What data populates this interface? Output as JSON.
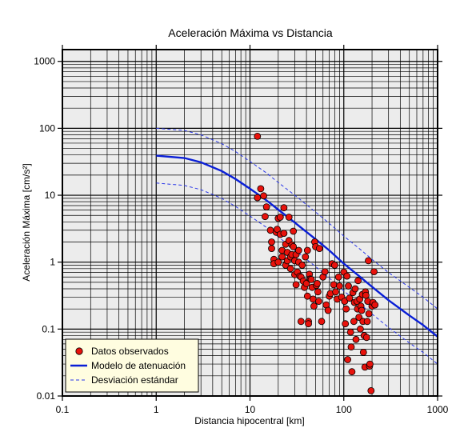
{
  "chart_data": {
    "type": "scatter",
    "title": "Aceleración Máxima vs Distancia",
    "xlabel": "Distancia hipocentral [km]",
    "ylabel": "Aceleración Máxima [cm/s²]",
    "xscale": "log",
    "yscale": "log",
    "xlim": [
      0.1,
      1000
    ],
    "ylim": [
      0.01,
      1500
    ],
    "grid": true,
    "legend_placement": "bottom-left",
    "x_tick_labels": [
      "0.1",
      "1",
      "10",
      "100",
      "1000"
    ],
    "y_tick_labels": [
      "0.01",
      "0.1",
      "1",
      "10",
      "100",
      "1000"
    ],
    "colors": {
      "observed": "#e8120c",
      "model": "#0a1fd6",
      "deviation": "#2a37e8",
      "plot_background": "#ececec",
      "legend_background": "#fffde0"
    },
    "series": [
      {
        "name": "Datos observados",
        "kind": "scatter",
        "points": [
          [
            12,
            76
          ],
          [
            12,
            9.2
          ],
          [
            13,
            12.5
          ],
          [
            14,
            9.8
          ],
          [
            14.5,
            4.8
          ],
          [
            15,
            6.7
          ],
          [
            16.5,
            3.0
          ],
          [
            17,
            2.0
          ],
          [
            17,
            1.6
          ],
          [
            18,
            1.1
          ],
          [
            18,
            0.95
          ],
          [
            19,
            2.8
          ],
          [
            19.5,
            3.1
          ],
          [
            20,
            4.5
          ],
          [
            20,
            1.0
          ],
          [
            21,
            4.7
          ],
          [
            21,
            2.6
          ],
          [
            22,
            1.5
          ],
          [
            22,
            1.2
          ],
          [
            23,
            6.5
          ],
          [
            23,
            2.7
          ],
          [
            24,
            1.85
          ],
          [
            24,
            0.9
          ],
          [
            25,
            1.4
          ],
          [
            25,
            1.05
          ],
          [
            26,
            4.7
          ],
          [
            26,
            2.1
          ],
          [
            27,
            1.2
          ],
          [
            27,
            0.8
          ],
          [
            28,
            1.8
          ],
          [
            28,
            1.3
          ],
          [
            29,
            1.7
          ],
          [
            29,
            2.9
          ],
          [
            30,
            1.05
          ],
          [
            30,
            0.65
          ],
          [
            31,
            0.46
          ],
          [
            31,
            1.3
          ],
          [
            32,
            0.71
          ],
          [
            33,
            1.5
          ],
          [
            33,
            1.0
          ],
          [
            34,
            0.62
          ],
          [
            35,
            0.6
          ],
          [
            35,
            0.13
          ],
          [
            36,
            0.9
          ],
          [
            37,
            0.52
          ],
          [
            38,
            0.42
          ],
          [
            39,
            1.2
          ],
          [
            40,
            0.48
          ],
          [
            41,
            1.5
          ],
          [
            41,
            0.31
          ],
          [
            42,
            0.13
          ],
          [
            42,
            0.12
          ],
          [
            43,
            0.66
          ],
          [
            44,
            0.56
          ],
          [
            45,
            0.55
          ],
          [
            46,
            0.42
          ],
          [
            47,
            0.28
          ],
          [
            48,
            0.22
          ],
          [
            49,
            2.0
          ],
          [
            50,
            1.7
          ],
          [
            51,
            0.45
          ],
          [
            52,
            0.48
          ],
          [
            53,
            0.36
          ],
          [
            54,
            0.26
          ],
          [
            55,
            1.6
          ],
          [
            58,
            0.13
          ],
          [
            60,
            0.6
          ],
          [
            63,
            0.72
          ],
          [
            65,
            0.23
          ],
          [
            68,
            0.19
          ],
          [
            70,
            0.31
          ],
          [
            72,
            0.34
          ],
          [
            75,
            0.95
          ],
          [
            78,
            0.46
          ],
          [
            80,
            0.9
          ],
          [
            82,
            0.36
          ],
          [
            85,
            0.28
          ],
          [
            88,
            0.6
          ],
          [
            90,
            0.44
          ],
          [
            95,
            0.3
          ],
          [
            100,
            0.71
          ],
          [
            102,
            0.26
          ],
          [
            104,
            0.12
          ],
          [
            106,
            0.2
          ],
          [
            108,
            0.62
          ],
          [
            110,
            0.035
          ],
          [
            112,
            0.44
          ],
          [
            115,
            0.29
          ],
          [
            118,
            0.09
          ],
          [
            120,
            0.054
          ],
          [
            122,
            0.023
          ],
          [
            125,
            0.35
          ],
          [
            128,
            0.13
          ],
          [
            130,
            0.25
          ],
          [
            132,
            0.4
          ],
          [
            135,
            0.07
          ],
          [
            138,
            0.26
          ],
          [
            140,
            0.2
          ],
          [
            142,
            0.53
          ],
          [
            145,
            0.15
          ],
          [
            148,
            0.28
          ],
          [
            150,
            0.1
          ],
          [
            152,
            0.22
          ],
          [
            155,
            0.19
          ],
          [
            158,
            0.33
          ],
          [
            160,
            0.13
          ],
          [
            162,
            0.045
          ],
          [
            165,
            0.08
          ],
          [
            168,
            0.027
          ],
          [
            170,
            0.36
          ],
          [
            172,
            0.32
          ],
          [
            175,
            0.075
          ],
          [
            178,
            0.13
          ],
          [
            180,
            0.26
          ],
          [
            183,
            1.05
          ],
          [
            185,
            0.17
          ],
          [
            188,
            0.028
          ],
          [
            190,
            0.03
          ],
          [
            195,
            0.012
          ],
          [
            200,
            0.22
          ],
          [
            205,
            0.25
          ],
          [
            210,
            0.72
          ],
          [
            215,
            0.23
          ]
        ]
      },
      {
        "name": "Modelo de atenuación",
        "kind": "line",
        "points": [
          [
            1,
            39
          ],
          [
            2,
            36
          ],
          [
            3,
            31
          ],
          [
            5,
            23
          ],
          [
            7,
            17.5
          ],
          [
            10,
            12.5
          ],
          [
            15,
            8.4
          ],
          [
            20,
            6.1
          ],
          [
            30,
            3.9
          ],
          [
            50,
            2.2
          ],
          [
            70,
            1.5
          ],
          [
            100,
            0.95
          ],
          [
            150,
            0.6
          ],
          [
            200,
            0.43
          ],
          [
            300,
            0.27
          ],
          [
            500,
            0.16
          ],
          [
            700,
            0.115
          ],
          [
            1000,
            0.077
          ]
        ]
      },
      {
        "name": "Desviación estándar",
        "kind": "dashed-line",
        "upper": [
          [
            1,
            100
          ],
          [
            2,
            93
          ],
          [
            3,
            80
          ],
          [
            5,
            59
          ],
          [
            7,
            45
          ],
          [
            10,
            32
          ],
          [
            15,
            21.5
          ],
          [
            20,
            15.5
          ],
          [
            30,
            10
          ],
          [
            50,
            5.6
          ],
          [
            70,
            3.8
          ],
          [
            100,
            2.45
          ],
          [
            150,
            1.55
          ],
          [
            200,
            1.1
          ],
          [
            300,
            0.7
          ],
          [
            500,
            0.42
          ],
          [
            700,
            0.3
          ],
          [
            1000,
            0.2
          ]
        ],
        "lower": [
          [
            1,
            15.2
          ],
          [
            2,
            14
          ],
          [
            3,
            12.1
          ],
          [
            5,
            9.0
          ],
          [
            7,
            6.8
          ],
          [
            10,
            4.9
          ],
          [
            15,
            3.3
          ],
          [
            20,
            2.4
          ],
          [
            30,
            1.52
          ],
          [
            50,
            0.86
          ],
          [
            70,
            0.58
          ],
          [
            100,
            0.37
          ],
          [
            150,
            0.235
          ],
          [
            200,
            0.168
          ],
          [
            300,
            0.106
          ],
          [
            500,
            0.062
          ],
          [
            700,
            0.045
          ],
          [
            1000,
            0.03
          ]
        ]
      }
    ]
  }
}
